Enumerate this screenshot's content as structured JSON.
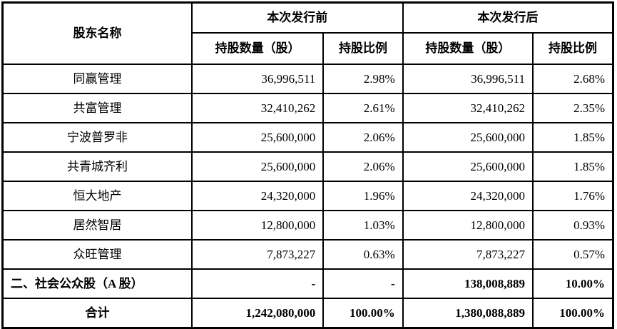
{
  "table": {
    "colors": {
      "border": "#000000",
      "background": "#ffffff",
      "text": "#000000"
    },
    "header": {
      "shareholder": "股东名称",
      "before_group": "本次发行前",
      "after_group": "本次发行后",
      "shares_col": "持股数量（股）",
      "ratio_col": "持股比例"
    },
    "rows": [
      {
        "name": "同赢管理",
        "before_shares": "36,996,511",
        "before_ratio": "2.98%",
        "after_shares": "36,996,511",
        "after_ratio": "2.68%",
        "bold": false,
        "name_align": "center"
      },
      {
        "name": "共富管理",
        "before_shares": "32,410,262",
        "before_ratio": "2.61%",
        "after_shares": "32,410,262",
        "after_ratio": "2.35%",
        "bold": false,
        "name_align": "center"
      },
      {
        "name": "宁波普罗非",
        "before_shares": "25,600,000",
        "before_ratio": "2.06%",
        "after_shares": "25,600,000",
        "after_ratio": "1.85%",
        "bold": false,
        "name_align": "center"
      },
      {
        "name": "共青城齐利",
        "before_shares": "25,600,000",
        "before_ratio": "2.06%",
        "after_shares": "25,600,000",
        "after_ratio": "1.85%",
        "bold": false,
        "name_align": "center"
      },
      {
        "name": "恒大地产",
        "before_shares": "24,320,000",
        "before_ratio": "1.96%",
        "after_shares": "24,320,000",
        "after_ratio": "1.76%",
        "bold": false,
        "name_align": "center"
      },
      {
        "name": "居然智居",
        "before_shares": "12,800,000",
        "before_ratio": "1.03%",
        "after_shares": "12,800,000",
        "after_ratio": "0.93%",
        "bold": false,
        "name_align": "center"
      },
      {
        "name": "众旺管理",
        "before_shares": "7,873,227",
        "before_ratio": "0.63%",
        "after_shares": "7,873,227",
        "after_ratio": "0.57%",
        "bold": false,
        "name_align": "center"
      },
      {
        "name": "二、社会公众股（A 股）",
        "before_shares": "-",
        "before_ratio": "-",
        "after_shares": "138,008,889",
        "after_ratio": "10.00%",
        "bold": true,
        "name_align": "left"
      },
      {
        "name": "合计",
        "before_shares": "1,242,080,000",
        "before_ratio": "100.00%",
        "after_shares": "1,380,088,889",
        "after_ratio": "100.00%",
        "bold": true,
        "name_align": "center"
      }
    ]
  }
}
